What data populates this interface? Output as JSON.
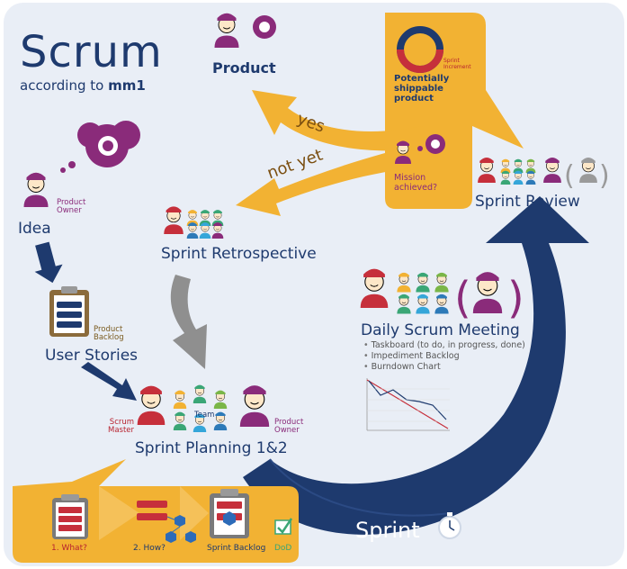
{
  "title": {
    "main": "Scrum",
    "sub_prefix": "according to",
    "sub_brand": "mm1"
  },
  "labels": {
    "product": "Product",
    "product_owner": "Product\nOwner",
    "idea": "Idea",
    "product_backlog": "Product\nBacklog",
    "user_stories": "User Stories",
    "scrum_master": "Scrum\nMaster",
    "team": "Team",
    "product_owner_2": "Product\nOwner",
    "sprint_planning": "Sprint Planning 1&2",
    "sprint_retrospective": "Sprint Retrospective",
    "sprint_review": "Sprint Review",
    "potentially_shippable": "Potentially\nshippable\nproduct",
    "sprint_increment": "Sprint\nIncrement",
    "mission_achieved": "Mission\nachieved?",
    "yes": "yes",
    "not_yet": "not yet",
    "daily_scrum": "Daily Scrum Meeting",
    "daily_items": [
      "Taskboard (to do, in progress, done)",
      "Impediment Backlog",
      "Burndown Chart"
    ],
    "what": "1. What?",
    "how": "2. How?",
    "sprint_backlog": "Sprint Backlog",
    "dod": "DoD",
    "sprint": "Sprint"
  },
  "colors": {
    "navy": "#1e3a6e",
    "purple": "#8a2b7a",
    "orange": "#f2b233",
    "red": "#c62f3b",
    "gray": "#8f8f8f",
    "bg": "#e9eef6"
  },
  "icons": [
    "person-icon",
    "thought-bubble-icon",
    "clipboard-icon",
    "team-icon",
    "stopwatch-icon",
    "ring-chart-icon",
    "checkbox-icon",
    "burndown-chart-icon"
  ]
}
